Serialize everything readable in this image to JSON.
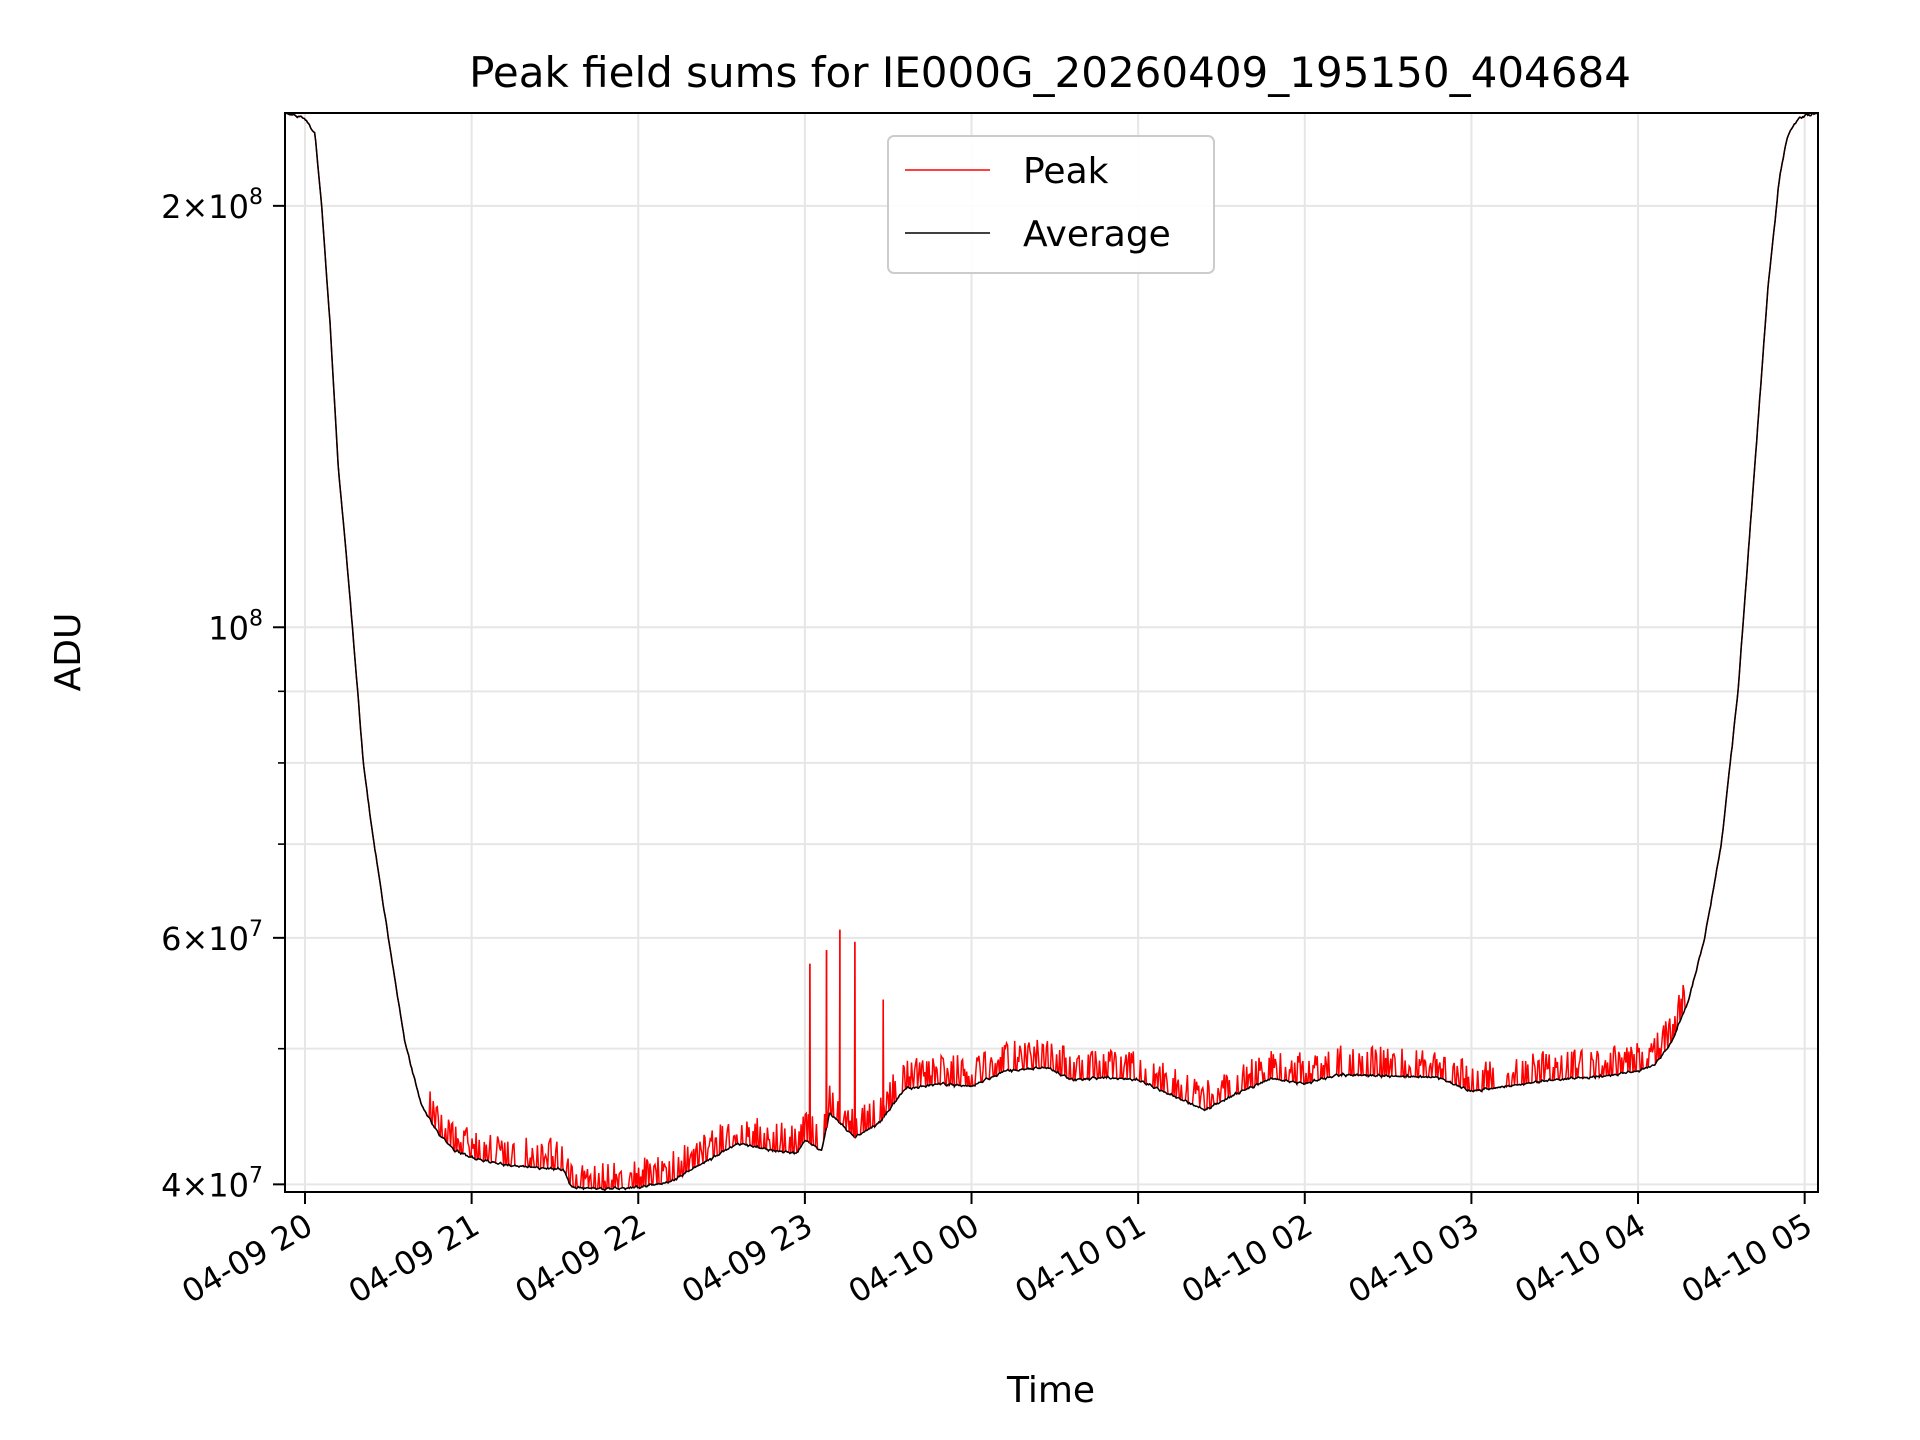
{
  "chart_data": {
    "type": "line",
    "title": "Peak field sums for IE000G_20260409_195150_404684",
    "xlabel": "Time",
    "ylabel": "ADU",
    "yscale": "log",
    "ylim": [
      39500000,
      233000000
    ],
    "xlim_hours": [
      19.88,
      29.08
    ],
    "x_ticks": [
      {
        "hour": 20,
        "label": "04-09 20"
      },
      {
        "hour": 21,
        "label": "04-09 21"
      },
      {
        "hour": 22,
        "label": "04-09 22"
      },
      {
        "hour": 23,
        "label": "04-09 23"
      },
      {
        "hour": 24,
        "label": "04-10 00"
      },
      {
        "hour": 25,
        "label": "04-10 01"
      },
      {
        "hour": 26,
        "label": "04-10 02"
      },
      {
        "hour": 27,
        "label": "04-10 03"
      },
      {
        "hour": 28,
        "label": "04-10 04"
      },
      {
        "hour": 29,
        "label": "04-10 05"
      }
    ],
    "y_major_ticks": [
      {
        "value": 40000000,
        "mantissa": "4",
        "exponent": "7"
      },
      {
        "value": 60000000,
        "mantissa": "6",
        "exponent": "7"
      },
      {
        "value": 100000000,
        "mantissa": "",
        "exponent": "8"
      },
      {
        "value": 200000000,
        "mantissa": "2",
        "exponent": "8"
      }
    ],
    "y_minor_ticks": [
      50000000,
      70000000,
      80000000,
      90000000
    ],
    "legend": {
      "position": "top-center",
      "entries": [
        {
          "name": "Peak",
          "color": "#ff0000"
        },
        {
          "name": "Average",
          "color": "#000000"
        }
      ]
    },
    "series": [
      {
        "name": "Average",
        "color": "#000000",
        "x_hours": [
          19.88,
          20.0,
          20.06,
          20.1,
          20.15,
          20.2,
          20.25,
          20.3,
          20.35,
          20.4,
          20.5,
          20.6,
          20.7,
          20.8,
          20.9,
          21.0,
          21.2,
          21.4,
          21.55,
          21.6,
          21.8,
          22.0,
          22.2,
          22.4,
          22.6,
          22.8,
          22.95,
          23.0,
          23.1,
          23.15,
          23.3,
          23.45,
          23.6,
          23.8,
          24.0,
          24.2,
          24.45,
          24.6,
          24.8,
          25.0,
          25.2,
          25.4,
          25.6,
          25.8,
          26.0,
          26.2,
          26.5,
          26.8,
          27.0,
          27.2,
          27.5,
          27.8,
          28.0,
          28.1,
          28.2,
          28.3,
          28.4,
          28.5,
          28.6,
          28.7,
          28.78,
          28.85,
          28.9,
          28.95,
          29.0,
          29.08
        ],
        "values": [
          233000000,
          231000000,
          225000000,
          200000000,
          165000000,
          130000000,
          112000000,
          95000000,
          80000000,
          72000000,
          60000000,
          50500000,
          45500000,
          43500000,
          42300000,
          41800000,
          41300000,
          41100000,
          41000000,
          39800000,
          39700000,
          39800000,
          40200000,
          41500000,
          42800000,
          42300000,
          42100000,
          43000000,
          42300000,
          45000000,
          43200000,
          44300000,
          46800000,
          47200000,
          47000000,
          48200000,
          48500000,
          47500000,
          47700000,
          47500000,
          46300000,
          45200000,
          46500000,
          47600000,
          47200000,
          47900000,
          47800000,
          47700000,
          46600000,
          47000000,
          47500000,
          47800000,
          48200000,
          48700000,
          50500000,
          54000000,
          60000000,
          70000000,
          90000000,
          130000000,
          175000000,
          210000000,
          225000000,
          230000000,
          232000000,
          233000000
        ]
      },
      {
        "name": "Peak",
        "color": "#ff0000",
        "spikes": [
          {
            "hour": 23.03,
            "value": 57500000
          },
          {
            "hour": 23.13,
            "value": 58800000
          },
          {
            "hour": 23.21,
            "value": 60800000
          },
          {
            "hour": 23.3,
            "value": 59600000
          },
          {
            "hour": 23.47,
            "value": 54200000
          }
        ]
      }
    ]
  }
}
